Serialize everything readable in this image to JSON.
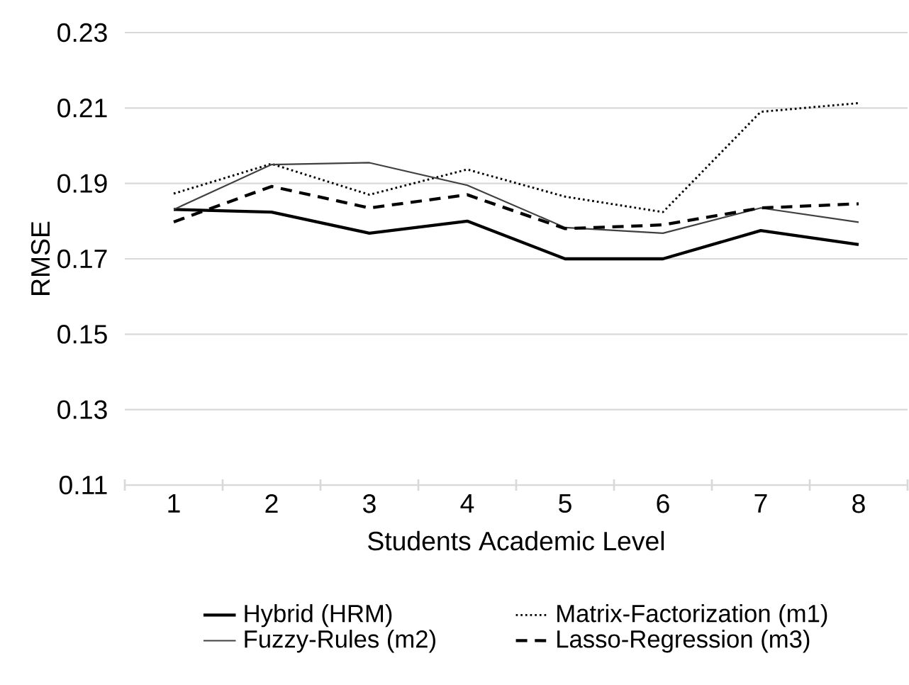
{
  "chart_data": {
    "type": "line",
    "xlabel": "Students Academic Level",
    "ylabel": "RMSE",
    "categories": [
      "1",
      "2",
      "3",
      "4",
      "5",
      "6",
      "7",
      "8"
    ],
    "series": [
      {
        "name": "Hybrid (HRM)",
        "color": "#000000",
        "line_style": "solid",
        "values": [
          0.1831,
          0.1824,
          0.1768,
          0.18,
          0.17,
          0.17,
          0.1775,
          0.1738
        ]
      },
      {
        "name": "Matrix-Factorization (m1)",
        "color": "#000000",
        "line_style": "dotted",
        "values": [
          0.1873,
          0.1952,
          0.187,
          0.1937,
          0.1865,
          0.1824,
          0.209,
          0.2113
        ]
      },
      {
        "name": "Fuzzy-Rules (m2)",
        "color": "#404040",
        "line_style": "solid",
        "values": [
          0.1831,
          0.195,
          0.1955,
          0.1895,
          0.1783,
          0.1768,
          0.1835,
          0.1797
        ]
      },
      {
        "name": "Lasso-Regression (m3)",
        "color": "#000000",
        "line_style": "dashed",
        "values": [
          0.1798,
          0.1892,
          0.1835,
          0.187,
          0.178,
          0.179,
          0.1835,
          0.1846
        ]
      }
    ],
    "ylim": [
      0.11,
      0.23
    ],
    "yticks": [
      0.11,
      0.13,
      0.15,
      0.17,
      0.19,
      0.21,
      0.23
    ],
    "grid": "y",
    "legend": "bottom",
    "marker": "none"
  }
}
